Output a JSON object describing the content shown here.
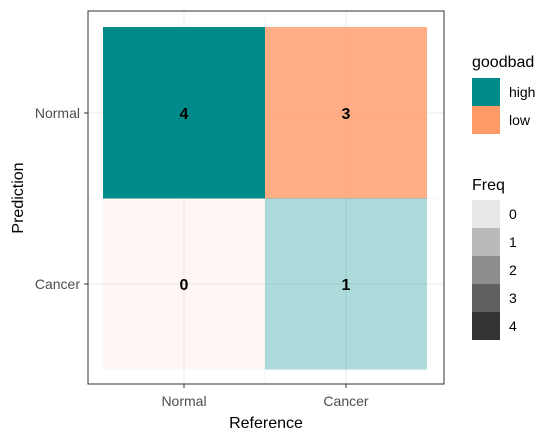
{
  "chart_data": {
    "type": "heatmap",
    "title": "",
    "xlabel": "Reference",
    "ylabel": "Prediction",
    "x_categories": [
      "Normal",
      "Cancer"
    ],
    "y_categories": [
      "Normal",
      "Cancer"
    ],
    "grid": true,
    "cells": [
      {
        "reference": "Normal",
        "prediction": "Normal",
        "freq": 4,
        "label": "4",
        "goodbad": "high",
        "fill": "#008B8B",
        "alpha": 1.0
      },
      {
        "reference": "Cancer",
        "prediction": "Normal",
        "freq": 3,
        "label": "3",
        "goodbad": "low",
        "fill": "#FF9966",
        "alpha": 0.8
      },
      {
        "reference": "Normal",
        "prediction": "Cancer",
        "freq": 0,
        "label": "0",
        "goodbad": "low",
        "fill": "#FF9966",
        "alpha": 0.08
      },
      {
        "reference": "Cancer",
        "prediction": "Cancer",
        "freq": 1,
        "label": "1",
        "goodbad": "high",
        "fill": "#008B8B",
        "alpha": 0.32
      }
    ],
    "legend_placement": "right",
    "legends": [
      {
        "title": "goodbad",
        "items": [
          {
            "label": "high",
            "color": "#008B8B"
          },
          {
            "label": "low",
            "color": "#FF9966"
          }
        ]
      },
      {
        "title": "Freq",
        "items": [
          {
            "label": "0",
            "color": "#E8E8E8"
          },
          {
            "label": "1",
            "color": "#BABABA"
          },
          {
            "label": "2",
            "color": "#8D8D8D"
          },
          {
            "label": "3",
            "color": "#606060"
          },
          {
            "label": "4",
            "color": "#333333"
          }
        ]
      }
    ]
  }
}
